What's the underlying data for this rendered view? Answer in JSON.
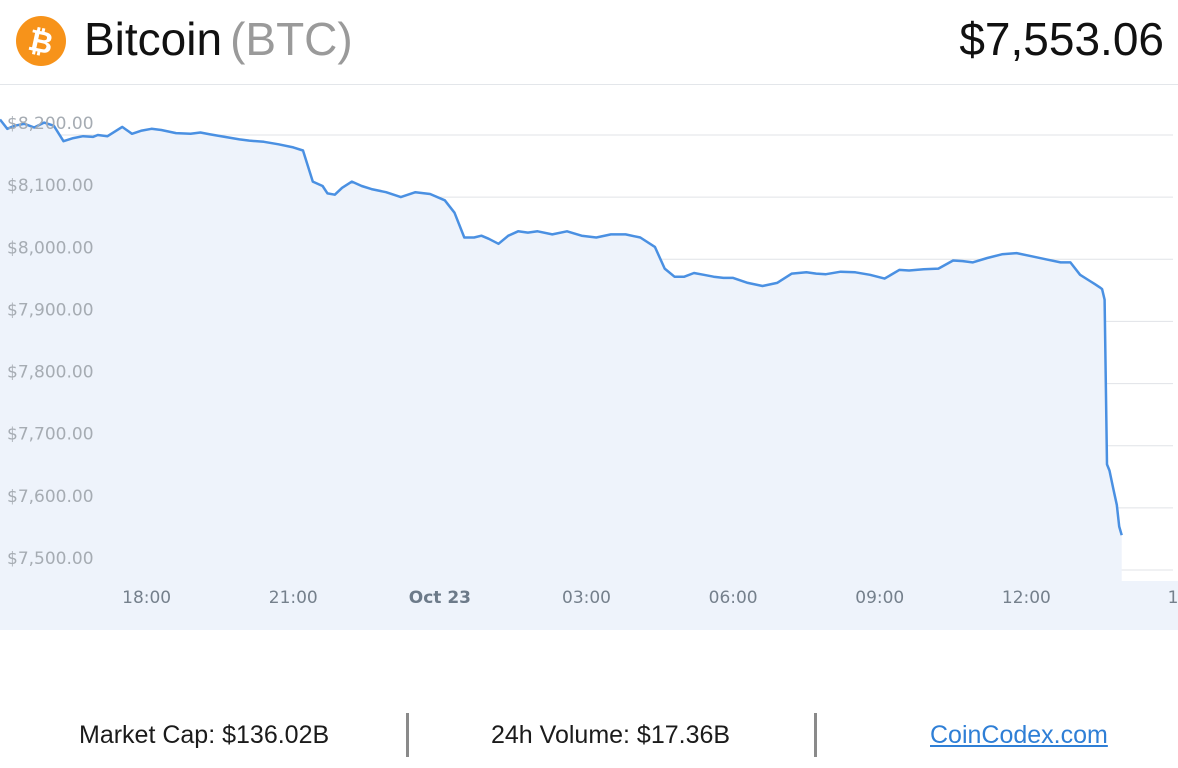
{
  "header": {
    "coin_name": "Bitcoin",
    "coin_ticker": "(BTC)",
    "price": "$7,553.06",
    "logo_icon": "bitcoin-icon",
    "logo_color": "#f7931a"
  },
  "chart_data": {
    "type": "area",
    "title": "",
    "xlabel": "",
    "ylabel": "",
    "line_color": "#4a90e2",
    "fill_color": "#eef3fb",
    "ylim": [
      7490,
      8235
    ],
    "y_ticks": [
      "$8,200.00",
      "$8,100.00",
      "$8,000.00",
      "$7,900.00",
      "$7,800.00",
      "$7,700.00",
      "$7,600.00",
      "$7,500.00"
    ],
    "y_tick_values": [
      8200,
      8100,
      8000,
      7900,
      7800,
      7700,
      7600,
      7500
    ],
    "xlim": [
      15,
      39
    ],
    "x_ticks": [
      "18:00",
      "21:00",
      "Oct 23",
      "03:00",
      "06:00",
      "09:00",
      "12:00",
      "1"
    ],
    "x_tick_values": [
      18,
      21,
      24,
      27,
      30,
      33,
      36,
      39
    ],
    "grid": true,
    "series": [
      {
        "x": [
          15.0,
          15.15,
          15.3,
          15.5,
          15.7,
          15.9,
          16.1,
          16.3,
          16.5,
          16.7,
          16.9,
          17.0,
          17.2,
          17.5,
          17.7,
          17.9,
          18.1,
          18.3,
          18.6,
          18.9,
          19.1,
          19.3,
          19.6,
          19.9,
          20.1,
          20.4,
          20.7,
          21.0,
          21.2,
          21.4,
          21.6,
          21.7,
          21.85,
          22.0,
          22.2,
          22.4,
          22.6,
          22.9,
          23.2,
          23.5,
          23.8,
          24.1,
          24.3,
          24.5,
          24.7,
          24.85,
          25.0,
          25.2,
          25.4,
          25.6,
          25.8,
          26.0,
          26.3,
          26.6,
          26.9,
          27.2,
          27.5,
          27.8,
          28.1,
          28.4,
          28.6,
          28.8,
          29.0,
          29.2,
          29.4,
          29.6,
          29.8,
          30.0,
          30.3,
          30.6,
          30.9,
          31.2,
          31.5,
          31.7,
          31.9,
          32.2,
          32.5,
          32.8,
          33.1,
          33.4,
          33.6,
          33.9,
          34.2,
          34.5,
          34.7,
          34.9,
          35.2,
          35.5,
          35.8,
          36.1,
          36.4,
          36.7,
          36.9,
          37.1,
          37.3,
          37.4,
          37.5,
          37.55,
          37.6,
          37.65,
          37.7,
          37.78,
          37.85,
          37.9,
          37.95
        ],
        "y": [
          8225,
          8210,
          8215,
          8218,
          8212,
          8220,
          8215,
          8190,
          8195,
          8198,
          8197,
          8200,
          8198,
          8213,
          8202,
          8207,
          8210,
          8208,
          8203,
          8202,
          8204,
          8201,
          8197,
          8193,
          8191,
          8189,
          8185,
          8180,
          8175,
          8125,
          8118,
          8106,
          8104,
          8115,
          8125,
          8118,
          8113,
          8108,
          8100,
          8108,
          8105,
          8095,
          8075,
          8035,
          8035,
          8038,
          8033,
          8025,
          8038,
          8045,
          8043,
          8045,
          8040,
          8045,
          8038,
          8035,
          8040,
          8040,
          8035,
          8020,
          7985,
          7972,
          7972,
          7978,
          7975,
          7972,
          7970,
          7970,
          7962,
          7957,
          7962,
          7977,
          7979,
          7977,
          7976,
          7980,
          7979,
          7975,
          7969,
          7983,
          7982,
          7984,
          7985,
          7998,
          7997,
          7995,
          8002,
          8008,
          8010,
          8005,
          8000,
          7995,
          7995,
          7975,
          7965,
          7960,
          7955,
          7952,
          7935,
          7670,
          7660,
          7630,
          7605,
          7570,
          7556
        ]
      }
    ]
  },
  "footer": {
    "market_cap": "Market Cap: $136.02B",
    "volume": "24h Volume: $17.36B",
    "site_link": "CoinCodex.com"
  }
}
